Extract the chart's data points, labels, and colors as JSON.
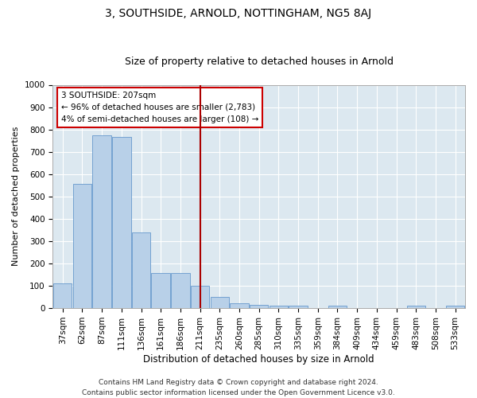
{
  "title": "3, SOUTHSIDE, ARNOLD, NOTTINGHAM, NG5 8AJ",
  "subtitle": "Size of property relative to detached houses in Arnold",
  "xlabel": "Distribution of detached houses by size in Arnold",
  "ylabel": "Number of detached properties",
  "categories": [
    "37sqm",
    "62sqm",
    "87sqm",
    "111sqm",
    "136sqm",
    "161sqm",
    "186sqm",
    "211sqm",
    "235sqm",
    "260sqm",
    "285sqm",
    "310sqm",
    "335sqm",
    "359sqm",
    "384sqm",
    "409sqm",
    "434sqm",
    "459sqm",
    "483sqm",
    "508sqm",
    "533sqm"
  ],
  "values": [
    110,
    555,
    775,
    765,
    340,
    158,
    158,
    100,
    50,
    20,
    15,
    10,
    10,
    0,
    10,
    0,
    0,
    0,
    10,
    0,
    10
  ],
  "bar_color": "#b8d0e8",
  "bar_edge_color": "#6699cc",
  "vline_x": 7,
  "vline_color": "#aa0000",
  "ylim": [
    0,
    1000
  ],
  "yticks": [
    0,
    100,
    200,
    300,
    400,
    500,
    600,
    700,
    800,
    900,
    1000
  ],
  "annotation_text": "3 SOUTHSIDE: 207sqm\n← 96% of detached houses are smaller (2,783)\n4% of semi-detached houses are larger (108) →",
  "annotation_box_color": "#ffffff",
  "annotation_box_edge_color": "#cc0000",
  "fig_background_color": "#ffffff",
  "plot_background_color": "#dce8f0",
  "footer_text": "Contains HM Land Registry data © Crown copyright and database right 2024.\nContains public sector information licensed under the Open Government Licence v3.0.",
  "title_fontsize": 10,
  "subtitle_fontsize": 9,
  "xlabel_fontsize": 8.5,
  "ylabel_fontsize": 8,
  "tick_fontsize": 7.5,
  "annotation_fontsize": 7.5,
  "footer_fontsize": 6.5
}
